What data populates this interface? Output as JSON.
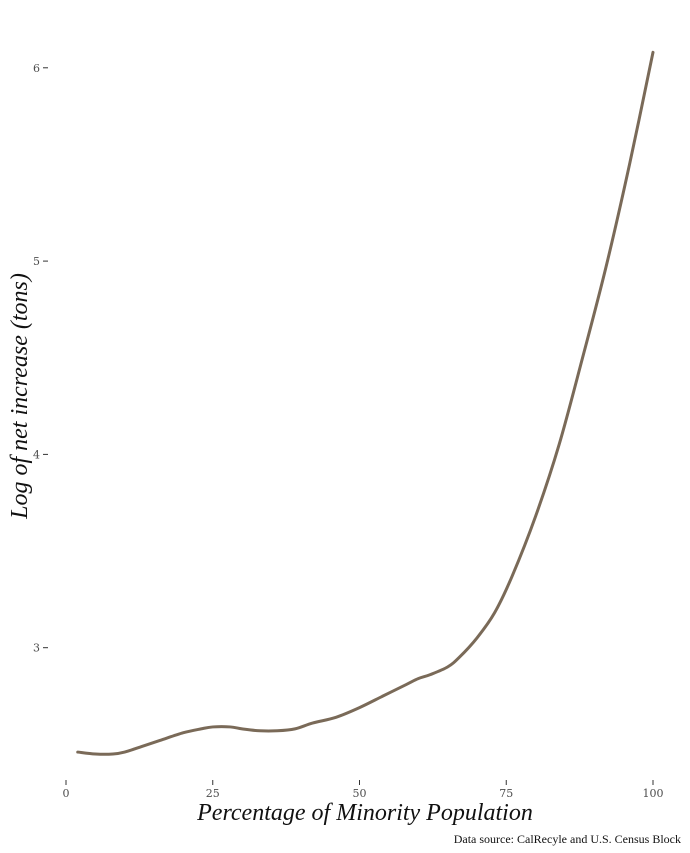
{
  "chart_data": {
    "type": "line",
    "title": "",
    "xlabel": "Percentage of Minority Population",
    "ylabel": "Log of net increase (tons)",
    "caption": "Data source: CalRecyle and U.S. Census Block",
    "xlim": [
      0,
      100
    ],
    "ylim": [
      2.3,
      6.18
    ],
    "x_ticks": [
      0,
      25,
      50,
      75,
      100
    ],
    "y_ticks": [
      3,
      4,
      5,
      6
    ],
    "grid": false,
    "legend": "none",
    "colors": {
      "line": "#7a6a58",
      "ticks": "#4d4d4d",
      "background": "#ffffff"
    },
    "series": [
      {
        "x": [
          2,
          5,
          8,
          10,
          13,
          16,
          20,
          23,
          25,
          28,
          30,
          33,
          36,
          39,
          42,
          46,
          50,
          54,
          58,
          60,
          62,
          65,
          67,
          70,
          73,
          76,
          80,
          84,
          88,
          92,
          96,
          100
        ],
        "values": [
          2.46,
          2.45,
          2.45,
          2.46,
          2.49,
          2.52,
          2.56,
          2.58,
          2.59,
          2.59,
          2.58,
          2.57,
          2.57,
          2.58,
          2.61,
          2.64,
          2.69,
          2.75,
          2.81,
          2.84,
          2.86,
          2.9,
          2.95,
          3.05,
          3.18,
          3.37,
          3.68,
          4.05,
          4.5,
          4.97,
          5.5,
          6.08
        ]
      }
    ]
  }
}
